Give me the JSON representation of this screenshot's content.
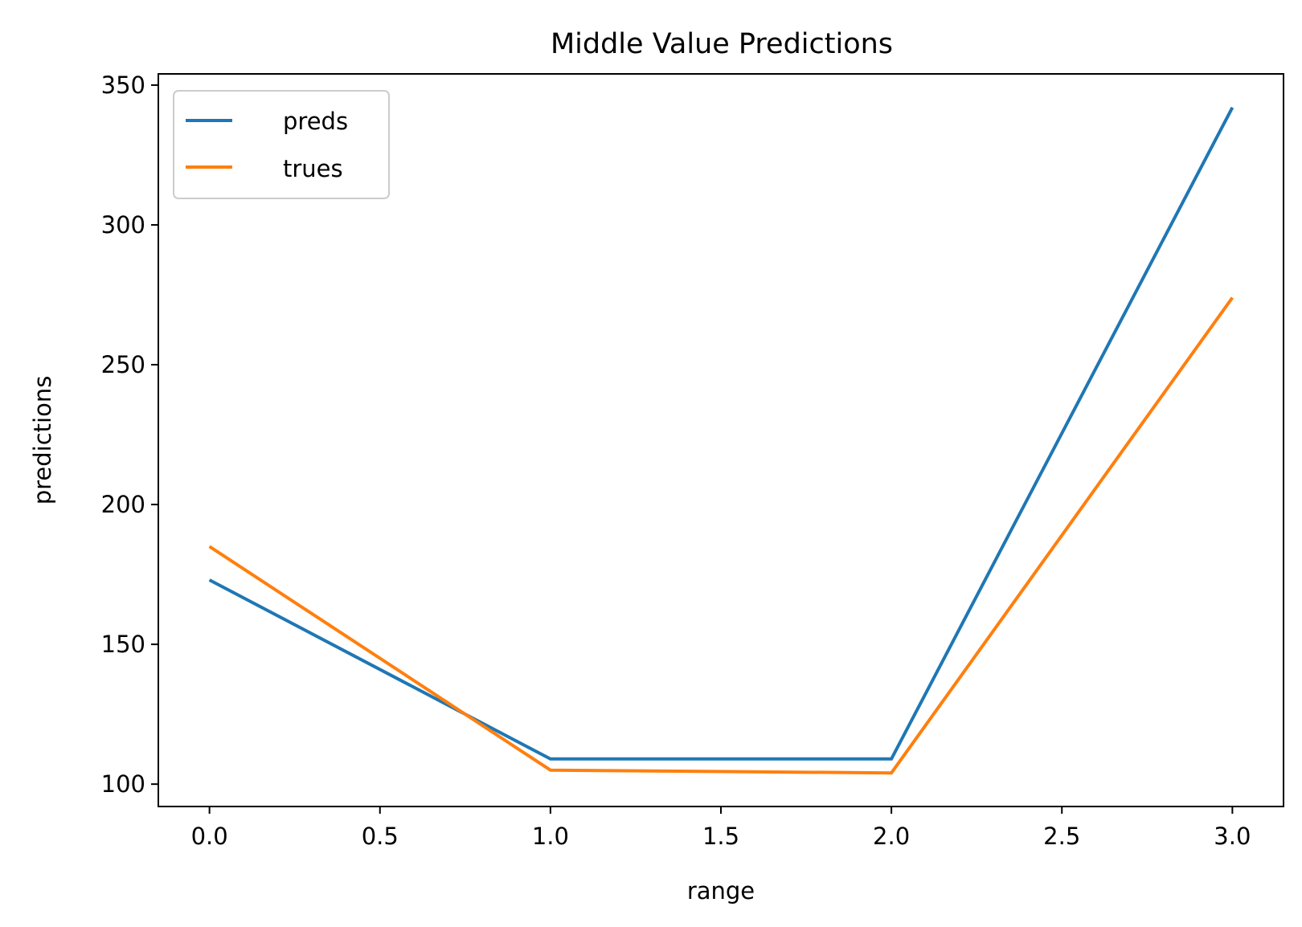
{
  "chart_data": {
    "type": "line",
    "title": "Middle Value Predictions",
    "xlabel": "range",
    "ylabel": "predictions",
    "x": [
      0,
      1,
      2,
      3
    ],
    "xlim": [
      -0.15,
      3.15
    ],
    "ylim": [
      92,
      354
    ],
    "xticks": [
      0.0,
      0.5,
      1.0,
      1.5,
      2.0,
      2.5,
      3.0
    ],
    "xtick_labels": [
      "0.0",
      "0.5",
      "1.0",
      "1.5",
      "2.0",
      "2.5",
      "3.0"
    ],
    "yticks": [
      100,
      150,
      200,
      250,
      300,
      350
    ],
    "ytick_labels": [
      "100",
      "150",
      "200",
      "250",
      "300",
      "350"
    ],
    "grid": false,
    "legend_position": "top-left",
    "series": [
      {
        "name": "preds",
        "color": "#1f77b4",
        "values": [
          173,
          109,
          109,
          342
        ]
      },
      {
        "name": "trues",
        "color": "#ff7f0e",
        "values": [
          185,
          105,
          104,
          274
        ]
      }
    ]
  }
}
